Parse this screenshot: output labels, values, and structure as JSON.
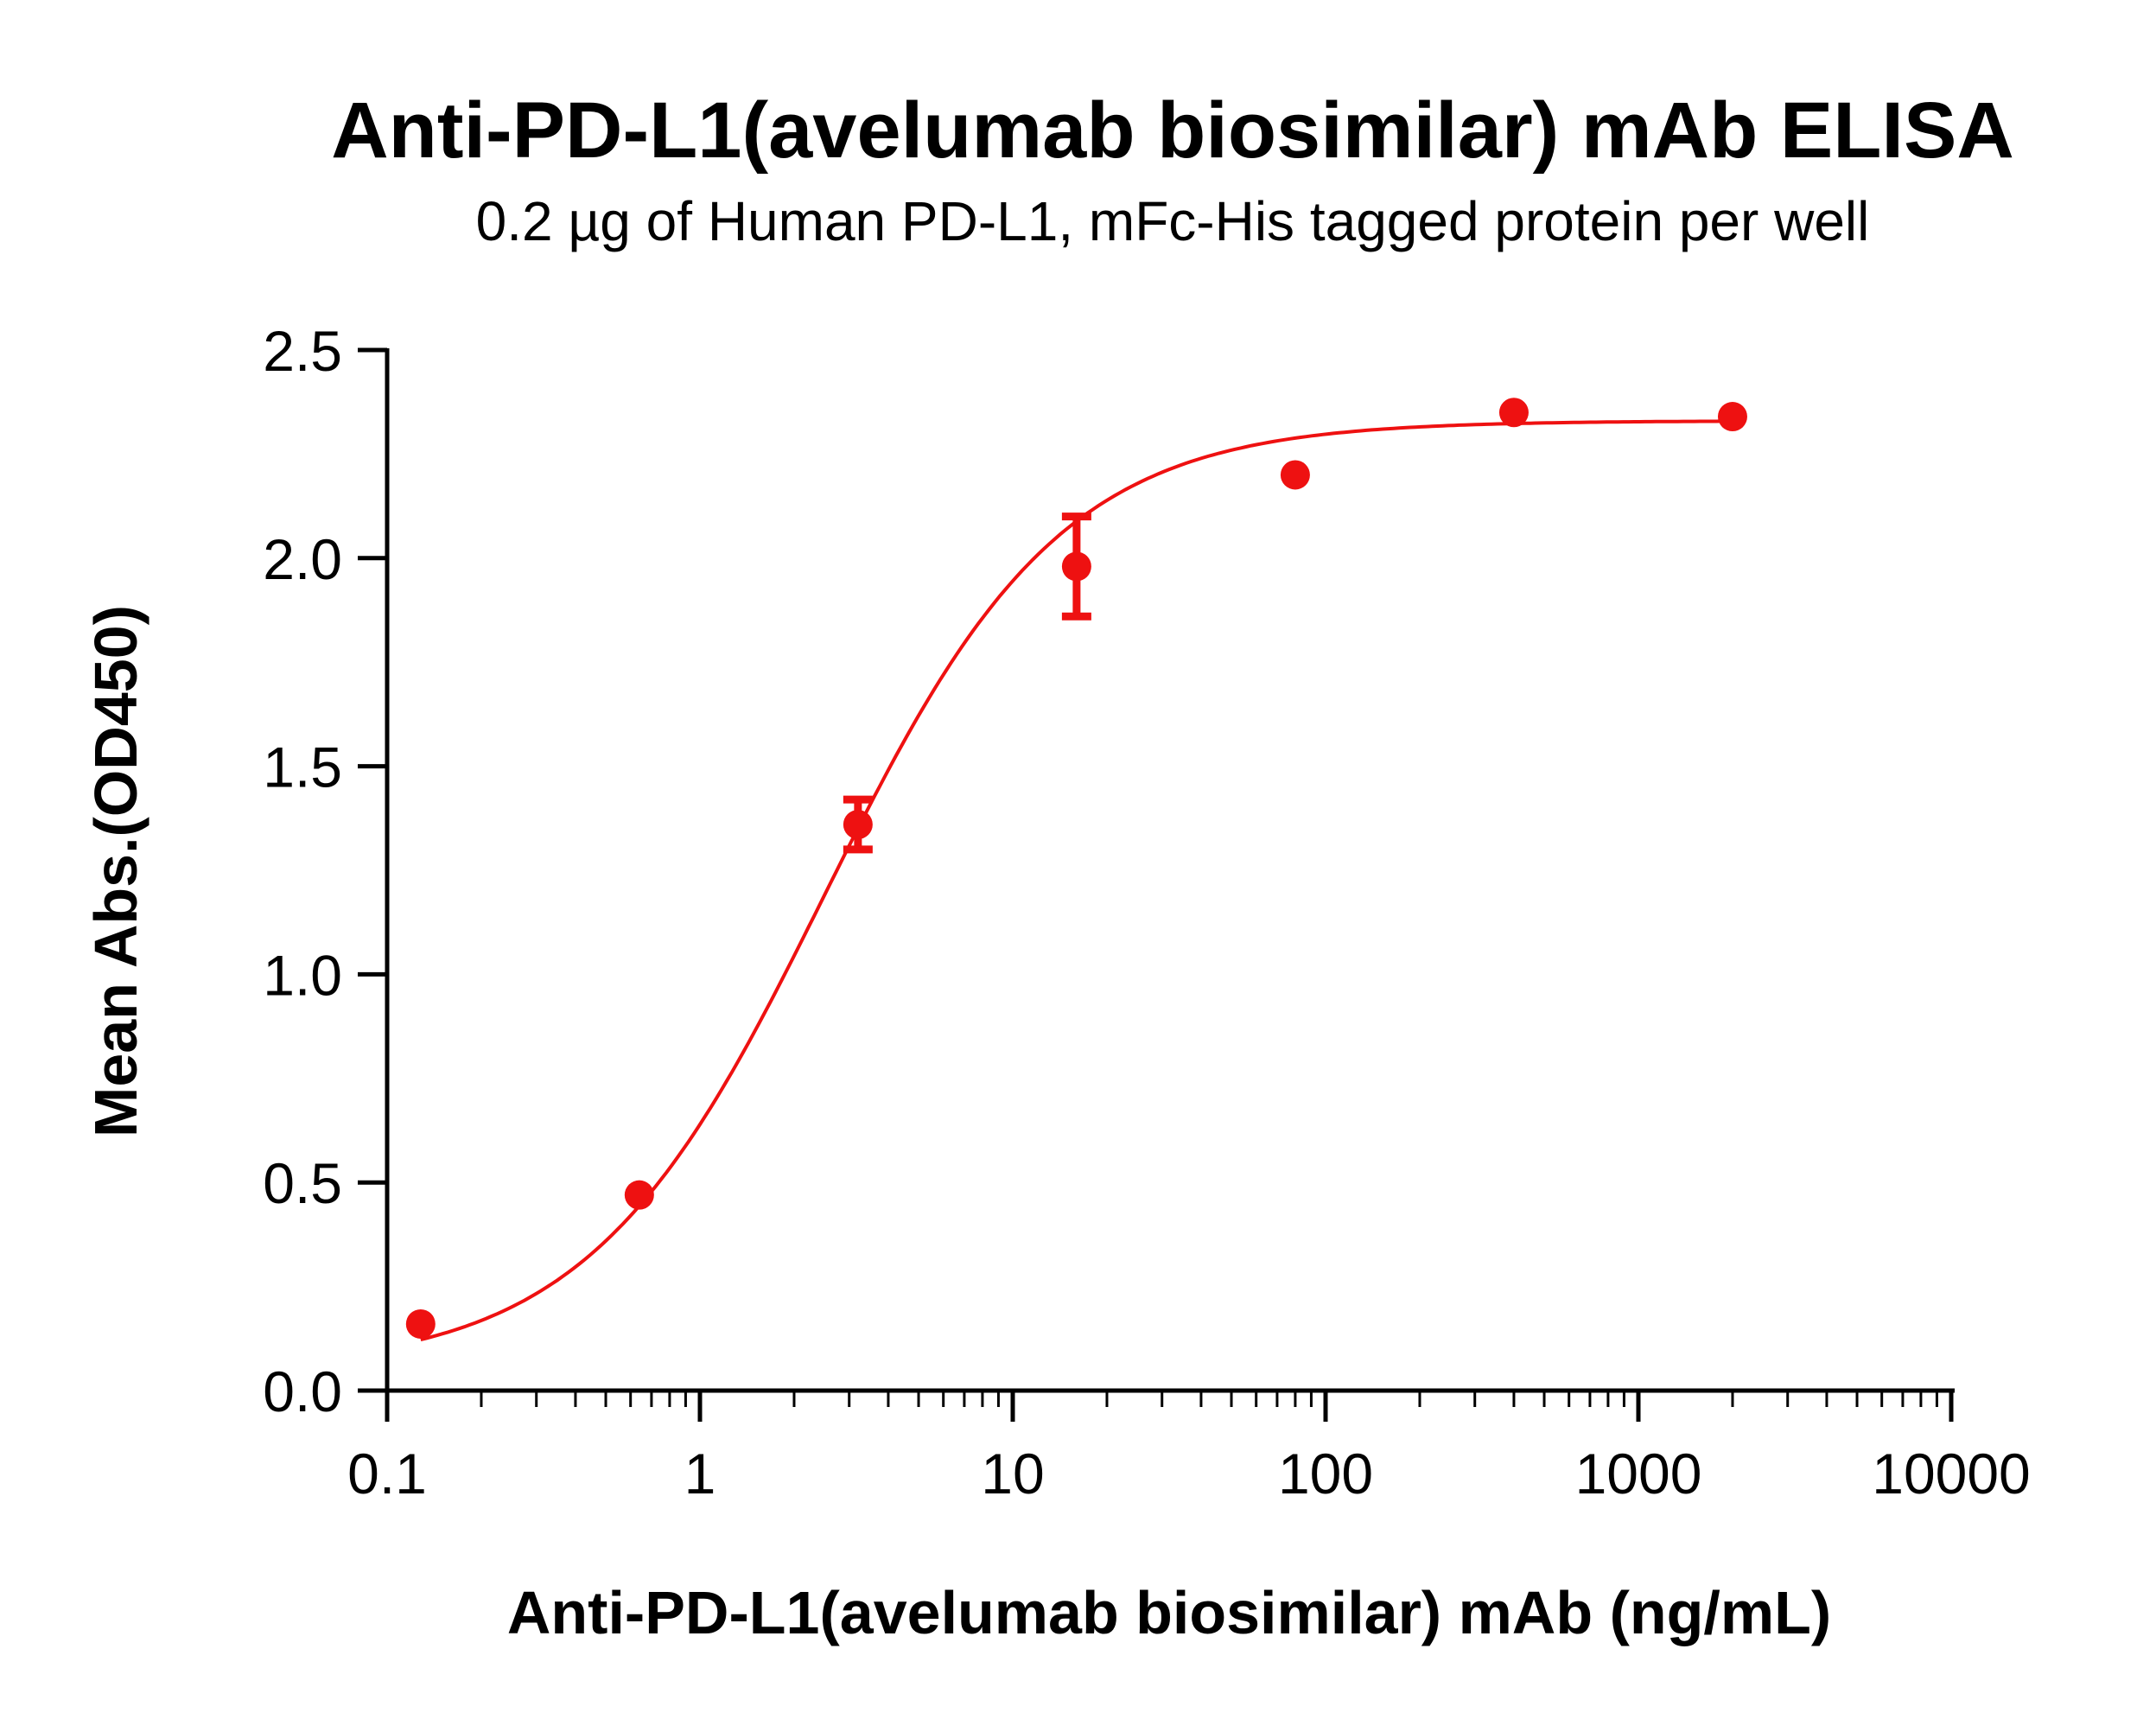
{
  "chart_data": {
    "type": "scatter",
    "title": "Anti-PD-L1(avelumab biosimilar) mAb ELISA",
    "subtitle": "0.2 µg of Human PD-L1,  mFc-His tagged protein per well",
    "xlabel": "Anti-PD-L1(avelumab biosimilar) mAb (ng/mL)",
    "ylabel": "Mean Abs.(OD450)",
    "x_scale": "log",
    "xlim": [
      0.1,
      10000
    ],
    "ylim": [
      0,
      2.5
    ],
    "x_ticks": [
      0.1,
      1,
      10,
      100,
      1000,
      10000
    ],
    "x_tick_labels": [
      "0.1",
      "1",
      "10",
      "100",
      "1000",
      "10000"
    ],
    "y_ticks": [
      0,
      0.5,
      1,
      1.5,
      2,
      2.5
    ],
    "y_tick_labels": [
      "0.0",
      "0.5",
      "1.0",
      "1.5",
      "2.0",
      "2.5"
    ],
    "color": "#ee1111",
    "series": [
      {
        "x": [
          0.128,
          0.64,
          3.2,
          16,
          80,
          400,
          2000
        ],
        "y": [
          0.16,
          0.47,
          1.36,
          1.98,
          2.2,
          2.35,
          2.34
        ],
        "error": [
          0,
          0,
          0.06,
          0.12,
          0,
          0,
          0
        ]
      }
    ],
    "fit_curve": {
      "model": "4PL",
      "bottom": 0.05,
      "top": 2.33,
      "ec50": 2.5,
      "hill": 1.15
    },
    "grid": false,
    "legend": "none"
  }
}
